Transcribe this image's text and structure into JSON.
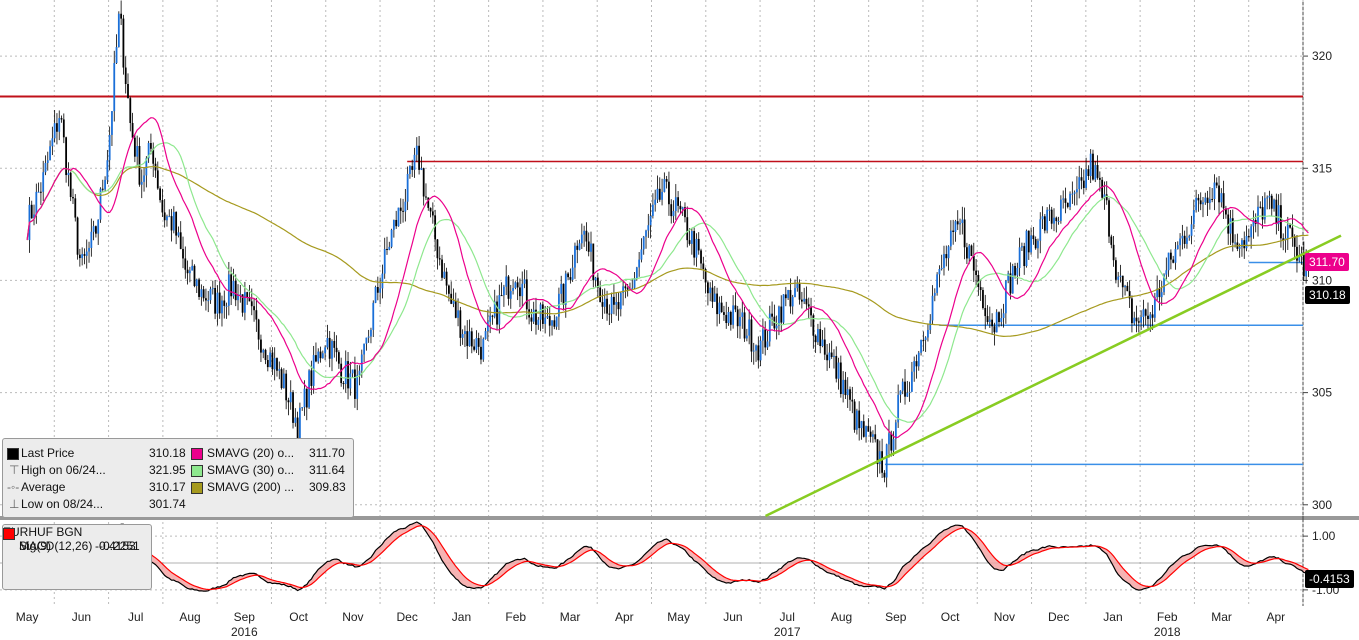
{
  "chart_data": [
    {
      "type": "line",
      "title": "",
      "ticker": "EURHUF BGN",
      "ylim": [
        299.5,
        322.5
      ],
      "y_ticks": [
        300,
        305,
        310,
        315,
        320
      ],
      "x_months": [
        "May",
        "Jun",
        "Jul",
        "Aug",
        "Sep",
        "Oct",
        "Nov",
        "Dec",
        "Jan",
        "Feb",
        "Mar",
        "Apr",
        "May",
        "Jun",
        "Jul",
        "Aug",
        "Sep",
        "Oct",
        "Nov",
        "Dec",
        "Jan",
        "Feb",
        "Mar",
        "Apr"
      ],
      "x_years": [
        "2016",
        "2017",
        "2018"
      ],
      "price_path": [
        [
          0,
          312.5
        ],
        [
          0.3,
          314.5
        ],
        [
          0.6,
          317.5
        ],
        [
          0.8,
          313.8
        ],
        [
          1.0,
          310.5
        ],
        [
          1.25,
          312.0
        ],
        [
          1.5,
          316.0
        ],
        [
          1.7,
          321.9
        ],
        [
          1.9,
          317.0
        ],
        [
          2.1,
          314.5
        ],
        [
          2.3,
          316.0
        ],
        [
          2.5,
          313.0
        ],
        [
          2.7,
          312.5
        ],
        [
          2.9,
          310.5
        ],
        [
          3.2,
          309.5
        ],
        [
          3.5,
          309.0
        ],
        [
          3.8,
          309.8
        ],
        [
          4.1,
          308.5
        ],
        [
          4.4,
          307.0
        ],
        [
          4.7,
          305.5
        ],
        [
          5.0,
          303.5
        ],
        [
          5.2,
          305.5
        ],
        [
          5.5,
          307.5
        ],
        [
          5.8,
          306.0
        ],
        [
          6.1,
          305.2
        ],
        [
          6.4,
          309.0
        ],
        [
          6.7,
          312.0
        ],
        [
          7.0,
          314.0
        ],
        [
          7.2,
          315.6
        ],
        [
          7.4,
          313.0
        ],
        [
          7.6,
          311.0
        ],
        [
          7.8,
          309.0
        ],
        [
          8.1,
          307.5
        ],
        [
          8.4,
          307.0
        ],
        [
          8.7,
          309.0
        ],
        [
          9.0,
          310.5
        ],
        [
          9.3,
          308.5
        ],
        [
          9.6,
          308.0
        ],
        [
          9.9,
          309.5
        ],
        [
          10.2,
          312.5
        ],
        [
          10.5,
          310.0
        ],
        [
          10.8,
          308.5
        ],
        [
          11.1,
          309.5
        ],
        [
          11.4,
          312.0
        ],
        [
          11.7,
          314.0
        ],
        [
          12.0,
          313.0
        ],
        [
          12.3,
          311.5
        ],
        [
          12.6,
          309.0
        ],
        [
          12.9,
          308.5
        ],
        [
          13.2,
          308.0
        ],
        [
          13.5,
          307.0
        ],
        [
          13.8,
          308.5
        ],
        [
          14.1,
          309.5
        ],
        [
          14.4,
          308.5
        ],
        [
          14.7,
          307.0
        ],
        [
          15.0,
          305.5
        ],
        [
          15.3,
          303.5
        ],
        [
          15.6,
          302.5
        ],
        [
          15.8,
          301.7
        ],
        [
          16.0,
          304.0
        ],
        [
          16.3,
          306.0
        ],
        [
          16.6,
          308.5
        ],
        [
          16.9,
          311.0
        ],
        [
          17.2,
          312.5
        ],
        [
          17.5,
          310.0
        ],
        [
          17.8,
          308.0
        ],
        [
          18.1,
          310.0
        ],
        [
          18.4,
          311.5
        ],
        [
          18.7,
          312.5
        ],
        [
          19.0,
          313.0
        ],
        [
          19.3,
          313.5
        ],
        [
          19.6,
          315.2
        ],
        [
          19.9,
          313.0
        ],
        [
          20.1,
          310.0
        ],
        [
          20.4,
          308.2
        ],
        [
          20.7,
          308.5
        ],
        [
          21.0,
          310.5
        ],
        [
          21.3,
          312.0
        ],
        [
          21.6,
          313.5
        ],
        [
          21.9,
          314.5
        ],
        [
          22.2,
          312.0
        ],
        [
          22.5,
          311.8
        ],
        [
          22.8,
          313.5
        ],
        [
          23.1,
          312.5
        ],
        [
          23.4,
          311.2
        ],
        [
          23.6,
          310.2
        ]
      ],
      "series": [
        {
          "name": "Last Price",
          "color": "#000000",
          "value": "310.18"
        },
        {
          "name": "High on 06/24...",
          "value": "321.95"
        },
        {
          "name": "Average",
          "value": "310.17"
        },
        {
          "name": "Low on 08/24...",
          "value": "301.74"
        },
        {
          "name": "SMAVG (20) o...",
          "color": "#ec008c",
          "value": "311.70"
        },
        {
          "name": "SMAVG (30) o...",
          "color": "#8ee88e",
          "value": "311.64"
        },
        {
          "name": "SMAVG (200) ...",
          "color": "#a69a1e",
          "value": "309.83"
        }
      ],
      "annotations": {
        "resistance_red": [
          318.2,
          315.3
        ],
        "support_blue": [
          310.8,
          308.0,
          301.8
        ],
        "trendline_green": [
          [
            13.6,
            299.5
          ],
          [
            24.2,
            312.0
          ]
        ]
      },
      "price_tags": [
        "311.70",
        "310.18"
      ]
    },
    {
      "type": "line",
      "title": "",
      "ylim": [
        -1.6,
        1.6
      ],
      "y_ticks": [
        "1.00",
        "-1.00"
      ],
      "series": [
        {
          "name": "MACD(12,26)",
          "color": "#000000",
          "value": "-0.4153"
        },
        {
          "name": "Sig(9)",
          "color": "#ff0000",
          "value": "-0.2251"
        }
      ],
      "macd_tag": "-0.4153"
    }
  ],
  "legend": {
    "rows": [
      {
        "label": "Last Price",
        "value": "310.18"
      },
      {
        "label": "High on 06/24...",
        "value": "321.95"
      },
      {
        "label": "Average",
        "value": "310.17"
      },
      {
        "label": "Low on 08/24...",
        "value": "301.74"
      }
    ],
    "rows2": [
      {
        "label": "SMAVG (20) o...",
        "value": "311.70"
      },
      {
        "label": "SMAVG (30) o...",
        "value": "311.64"
      },
      {
        "label": "SMAVG (200) ...",
        "value": "309.83"
      }
    ],
    "macd_title": "EURHUF BGN",
    "macd_row": {
      "label": "MACD(12,26)",
      "value": "-0.4153"
    },
    "sig_row": {
      "label": "Sig(9)",
      "value": "-0.2251"
    }
  },
  "colors": {
    "red_line": "#c0101a",
    "blue_line": "#3a8fe8",
    "green_line": "#88cc22",
    "sma20": "#ec008c",
    "sma30": "#8ee88e",
    "sma200": "#a69a1e",
    "candle_up": "#1a6fd8",
    "candle_down": "#000000"
  }
}
